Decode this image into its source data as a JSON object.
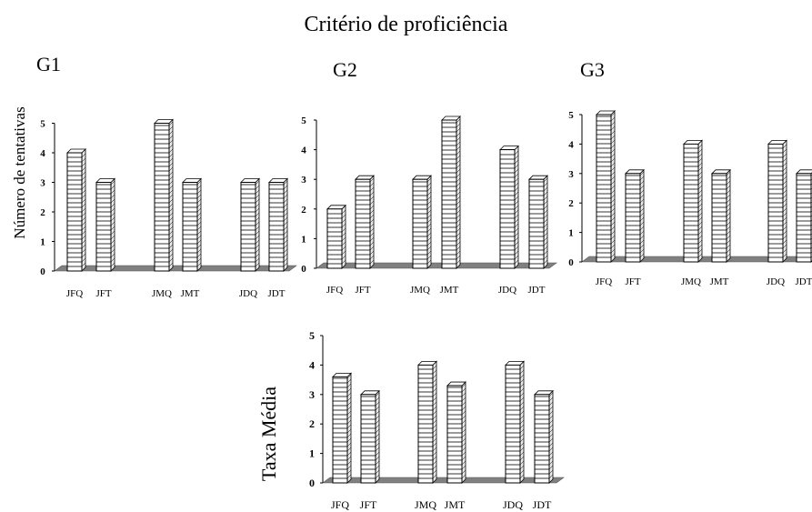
{
  "page": {
    "title": "Critério de proficiência",
    "shared_ylabel": "Número de tentativas"
  },
  "chart_data": [
    {
      "type": "bar",
      "title": "G1",
      "ylabel": "Número de tentativas",
      "categories": [
        "JFQ",
        "JFT",
        "JMQ",
        "JMT",
        "JDQ",
        "JDT"
      ],
      "values": [
        4,
        3,
        5,
        3,
        3,
        3
      ],
      "ylim": [
        0,
        5
      ],
      "yticks": [
        0,
        1,
        2,
        3,
        4,
        5
      ],
      "grid": false,
      "style": "3d-bar-horizontal-hatch"
    },
    {
      "type": "bar",
      "title": "G2",
      "categories": [
        "JFQ",
        "JFT",
        "JMQ",
        "JMT",
        "JDQ",
        "JDT"
      ],
      "values": [
        2,
        3,
        3,
        5,
        4,
        3
      ],
      "ylim": [
        0,
        5
      ],
      "yticks": [
        0,
        1,
        2,
        3,
        4,
        5
      ],
      "grid": false,
      "style": "3d-bar-horizontal-hatch"
    },
    {
      "type": "bar",
      "title": "G3",
      "categories": [
        "JFQ",
        "JFT",
        "JMQ",
        "JMT",
        "JDQ",
        "JDT"
      ],
      "values": [
        5,
        3,
        4,
        3,
        4,
        3
      ],
      "ylim": [
        0,
        5
      ],
      "yticks": [
        0,
        1,
        2,
        3,
        4,
        5
      ],
      "grid": false,
      "style": "3d-bar-horizontal-hatch"
    },
    {
      "type": "bar",
      "title": "",
      "ylabel": "Taxa Média",
      "categories": [
        "JFQ",
        "JFT",
        "JMQ",
        "JMT",
        "JDQ",
        "JDT"
      ],
      "values": [
        3.6,
        3,
        4,
        3.3,
        4,
        3
      ],
      "ylim": [
        0,
        5
      ],
      "yticks": [
        0,
        1,
        2,
        3,
        4,
        5
      ],
      "grid": false,
      "style": "3d-bar-horizontal-hatch"
    }
  ],
  "colors": {
    "bar_fill": "#ffffff",
    "bar_line": "#000000",
    "floor": "#808080"
  }
}
